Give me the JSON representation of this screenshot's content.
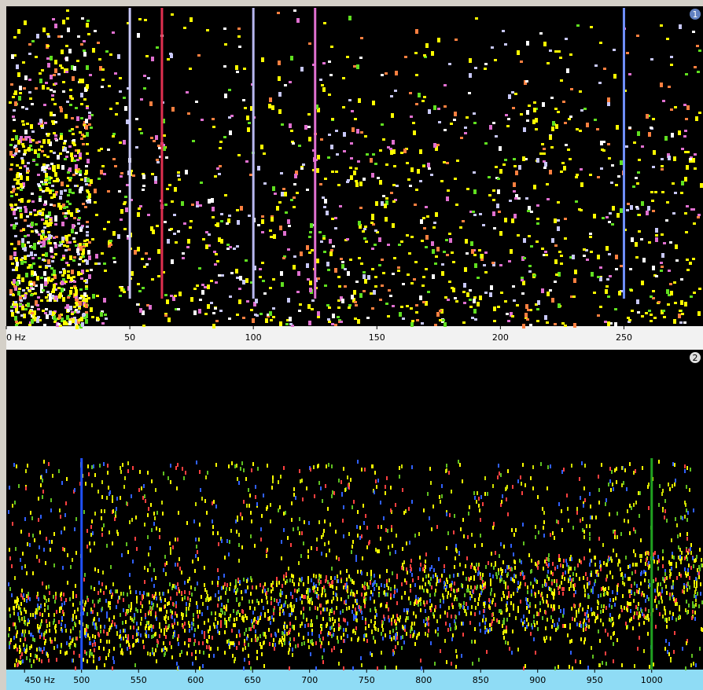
{
  "panels": [
    {
      "badge": "1",
      "xlim": [
        0,
        282
      ],
      "xticks": [
        {
          "value": 0,
          "label": "0 Hz"
        },
        50,
        100,
        150,
        200,
        250
      ],
      "markers": [
        {
          "freq": 50,
          "color": "#c8c8f8"
        },
        {
          "freq": 63,
          "color": "#e03050"
        },
        {
          "freq": 100,
          "color": "#b8b8f0"
        },
        {
          "freq": 125,
          "color": "#e070d0"
        },
        {
          "freq": 250,
          "color": "#7090ff"
        }
      ]
    },
    {
      "badge": "2",
      "xlim": [
        434,
        1045
      ],
      "xticks": [
        {
          "value": 450,
          "label": "450 Hz"
        },
        500,
        550,
        600,
        650,
        700,
        750,
        800,
        850,
        900,
        950,
        1000
      ],
      "markers": [
        {
          "freq": 500,
          "color": "#2050ff"
        },
        {
          "freq": 1000,
          "color": "#20a020"
        }
      ]
    }
  ]
}
